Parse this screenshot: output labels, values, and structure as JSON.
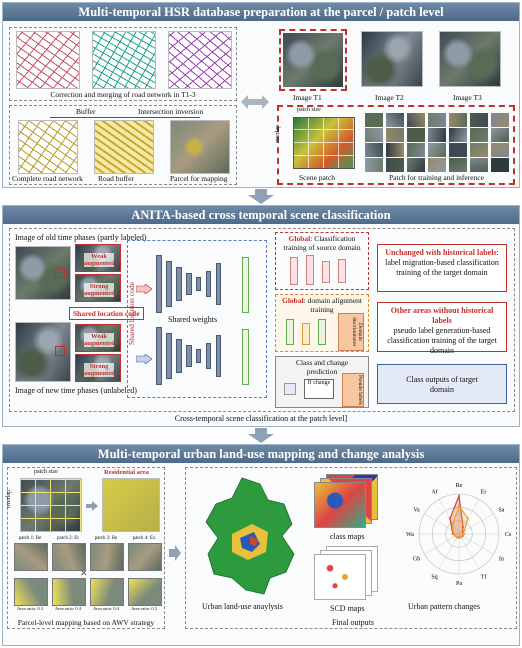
{
  "section1": {
    "title": "Multi-temporal HSR database preparation at the parcel / patch level",
    "road_caption": "Correction and merging of road network in T1-3",
    "buffer_label": "Buffer",
    "intersection_label": "Intersection inversion",
    "complete_road": "Complete road network",
    "road_buffer": "Road buffer",
    "parcel_mapping": "Parcel for mapping",
    "image_t1": "Image T1",
    "image_t2": "Image T2",
    "image_t3": "Image T3",
    "patch_size": "patch size",
    "overlap": "overlap",
    "scene_patch": "Scene patch",
    "patch_training": "Patch for training and inference"
  },
  "section2": {
    "title": "ANITA-based cross temporal scene classification",
    "old_images": "Image of old time phases (partly labeled)",
    "new_images": "Image of new time phases (unlabeled)",
    "weak_aug": "Weak augmented",
    "strong_aug": "Strong augmented",
    "shared_location": "Shared location code",
    "shared_location_vertical": "Shared location code",
    "shared_weights": "Shared weights",
    "global1_title": "Global",
    "global1_text": ": Classification training of source domain",
    "global2_title": "Global",
    "global2_text": ": domain alignment training",
    "domain_disc": "Domain discriminator",
    "class_change": "Class and change prediction",
    "if_change": "If change",
    "pseudo_labels": "Pseudo labels",
    "unchanged_title": "Unchanged with historical labels",
    "unchanged_text": "label migration-based classification training of the target domain",
    "other_title": "Other areas without historical labels",
    "other_text": "pseudo label generation-based classification training of the target domain",
    "class_outputs": "Class outputs of target domain",
    "caption": "Cross-temporal scene classification at the patch level]"
  },
  "section3": {
    "title": "Multi-temporal urban land-use mapping and change analysis",
    "patch_size": "patch size",
    "overlap": "overlap",
    "residential": "Residential area",
    "patches": [
      "patch 1: Re",
      "patch 2: Er",
      "patch 3: Re",
      "patch 4: Ex"
    ],
    "area_ratios": [
      "Area ratio: 0.3",
      "Area ratio: 0.4",
      "Area ratio: 0.4",
      "Area ratio: 0.3"
    ],
    "parcel_caption": "Parcel-level mapping based on AWV strategy",
    "urban_analysis": "Urban land-use anaylysis",
    "class_maps": "class maps",
    "scd_maps": "SCD maps",
    "final_outputs": "Final outputs",
    "urban_pattern": "Urban pattern changes",
    "radar_labels": [
      "Re",
      "Er",
      "Sa",
      "Cs",
      "In",
      "Tf",
      "Pa",
      "Sq",
      "Gb",
      "Wa",
      "Va",
      "Af"
    ]
  },
  "chart_data": {
    "type": "radar",
    "categories": [
      "Re",
      "Er",
      "Sa",
      "Cs",
      "In",
      "Tf",
      "Pa",
      "Sq",
      "Gb",
      "Wa",
      "Va",
      "Af"
    ],
    "series": [
      {
        "values": [
          0.95,
          0.2,
          0.1,
          0.12,
          0.1,
          0.1,
          0.08,
          0.1,
          0.1,
          0.15,
          0.2,
          0.45
        ]
      },
      {
        "values": [
          0.7,
          0.45,
          0.15,
          0.1,
          0.08,
          0.1,
          0.1,
          0.1,
          0.1,
          0.12,
          0.18,
          0.3
        ]
      }
    ],
    "colors": [
      "#d04a2a",
      "#e8a23a"
    ]
  },
  "colors": {
    "banner": "#5a7695",
    "red": "#c0302c",
    "blue": "#3d5fa3",
    "arrow": "#8fa2b5"
  }
}
